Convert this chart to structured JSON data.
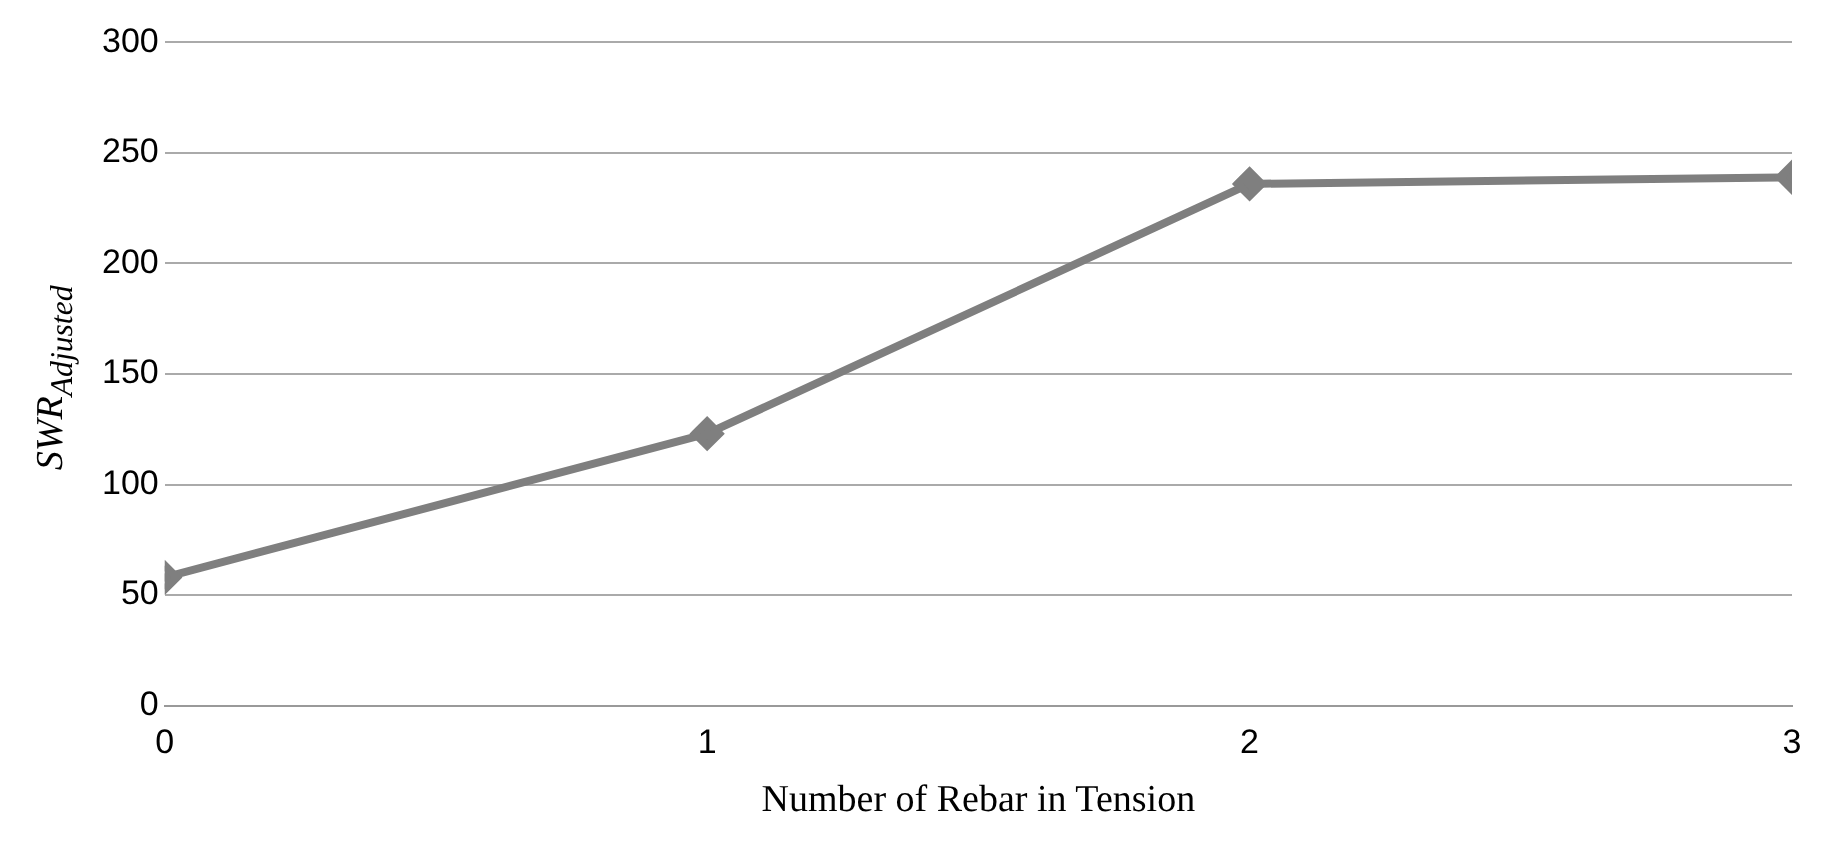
{
  "chart_data": {
    "type": "line",
    "xlabel": "Number of Rebar in Tension",
    "ylabel": "SWR$_{Adjusted}$",
    "x": [
      0,
      1,
      2,
      3
    ],
    "series": [
      {
        "color": "#7f7f7f",
        "values": [
          58,
          123,
          236,
          239
        ]
      }
    ],
    "xlim": [
      0,
      3
    ],
    "xticks": [
      0,
      1,
      2,
      3
    ],
    "ylim": [
      0,
      300
    ],
    "yticks": [
      0,
      50,
      100,
      150,
      200,
      250,
      300
    ],
    "grid": "y",
    "marker": "diamond",
    "line_style": "solid",
    "legend": false
  }
}
